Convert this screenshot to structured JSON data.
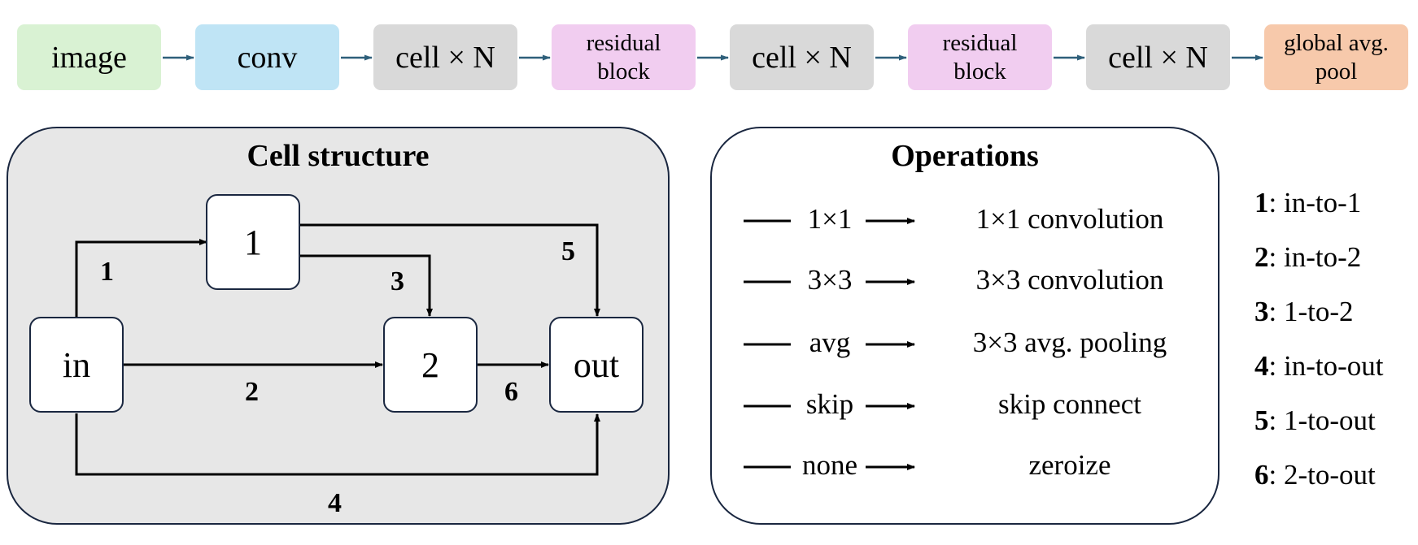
{
  "pipeline": [
    {
      "lines": [
        "image"
      ],
      "color": "#d9f2d3"
    },
    {
      "lines": [
        "conv"
      ],
      "color": "#bfe4f5"
    },
    {
      "lines": [
        "cell × N"
      ],
      "color": "#d9d9d9"
    },
    {
      "lines": [
        "residual",
        "block"
      ],
      "color": "#f1cdf0"
    },
    {
      "lines": [
        "cell × N"
      ],
      "color": "#d9d9d9"
    },
    {
      "lines": [
        "residual",
        "block"
      ],
      "color": "#f1cdf0"
    },
    {
      "lines": [
        "cell × N"
      ],
      "color": "#d9d9d9"
    },
    {
      "lines": [
        "global avg.",
        "pool"
      ],
      "color": "#f7c9ab"
    }
  ],
  "cell": {
    "title": "Cell structure",
    "background": "#e7e7e7",
    "nodes": {
      "in": "in",
      "n1": "1",
      "n2": "2",
      "out": "out"
    },
    "edge_labels": {
      "e1": "1",
      "e2": "2",
      "e3": "3",
      "e4": "4",
      "e5": "5",
      "e6": "6"
    }
  },
  "operations": {
    "title": "Operations",
    "items": [
      {
        "symbol": "1×1",
        "description": "1×1 convolution"
      },
      {
        "symbol": "3×3",
        "description": "3×3 convolution"
      },
      {
        "symbol": "avg",
        "description": "3×3 avg. pooling"
      },
      {
        "symbol": "skip",
        "description": "skip connect"
      },
      {
        "symbol": "none",
        "description": "zeroize"
      }
    ]
  },
  "legend": [
    {
      "num": "1",
      "text": ": in-to-1"
    },
    {
      "num": "2",
      "text": ": in-to-2"
    },
    {
      "num": "3",
      "text": ": 1-to-2"
    },
    {
      "num": "4",
      "text": ": in-to-out"
    },
    {
      "num": "5",
      "text": ": 1-to-out"
    },
    {
      "num": "6",
      "text": ": 2-to-out"
    }
  ],
  "colors": {
    "arrow_pipeline": "#2e5f7a",
    "border": "#1a2740"
  }
}
